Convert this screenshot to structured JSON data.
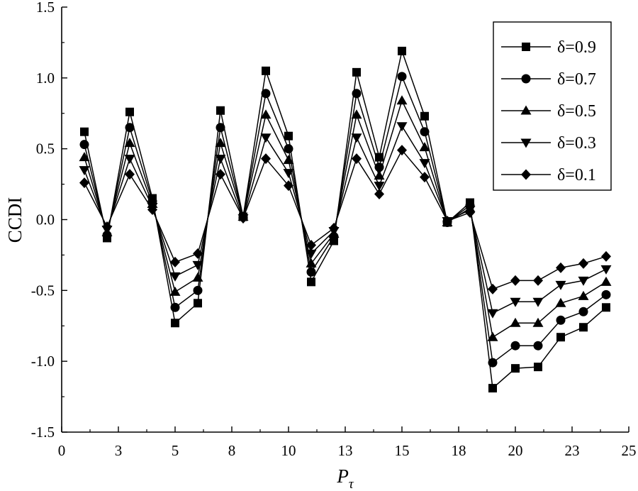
{
  "chart_data": {
    "type": "line",
    "title": "",
    "xlabel": "P",
    "xlabel_subscript": "τ",
    "ylabel": "CCDI",
    "xlim": [
      0,
      25
    ],
    "ylim": [
      -1.5,
      1.5
    ],
    "x_tick_values": [
      0,
      2.5,
      5,
      7.5,
      10,
      12.5,
      15,
      17.5,
      20,
      22.5,
      25
    ],
    "x_tick_labels": [
      "0",
      "3",
      "5",
      "8",
      "10",
      "13",
      "15",
      "18",
      "20",
      "23",
      "25"
    ],
    "y_tick_values": [
      -1.5,
      -1.0,
      -0.5,
      0.0,
      0.5,
      1.0,
      1.5
    ],
    "y_tick_labels": [
      "-1.5",
      "-1.0",
      "-0.5",
      "0.0",
      "0.5",
      "1.0",
      "1.5"
    ],
    "grid": false,
    "legend_position": "top-right",
    "line_color": "#000000",
    "x": [
      1,
      2,
      3,
      4,
      5,
      6,
      7,
      8,
      9,
      10,
      11,
      12,
      13,
      14,
      15,
      16,
      17,
      18,
      19,
      20,
      21,
      22,
      23,
      24
    ],
    "series": [
      {
        "name": "δ=0.9",
        "marker": "square",
        "values": [
          0.62,
          -0.13,
          0.76,
          0.15,
          -0.73,
          -0.59,
          0.77,
          0.02,
          1.05,
          0.59,
          -0.44,
          -0.15,
          1.04,
          0.44,
          1.19,
          0.73,
          -0.02,
          0.12,
          -1.19,
          -1.05,
          -1.04,
          -0.83,
          -0.76,
          -0.62
        ]
      },
      {
        "name": "δ=0.7",
        "marker": "circle",
        "values": [
          0.53,
          -0.11,
          0.65,
          0.13,
          -0.62,
          -0.5,
          0.65,
          0.02,
          0.89,
          0.5,
          -0.37,
          -0.12,
          0.89,
          0.37,
          1.01,
          0.62,
          -0.02,
          0.1,
          -1.01,
          -0.89,
          -0.89,
          -0.71,
          -0.65,
          -0.53
        ]
      },
      {
        "name": "δ=0.5",
        "marker": "triangle-up",
        "values": [
          0.44,
          -0.09,
          0.54,
          0.11,
          -0.51,
          -0.41,
          0.54,
          0.02,
          0.74,
          0.42,
          -0.31,
          -0.1,
          0.74,
          0.31,
          0.84,
          0.51,
          -0.02,
          0.08,
          -0.83,
          -0.73,
          -0.73,
          -0.59,
          -0.54,
          -0.44
        ]
      },
      {
        "name": "δ=0.3",
        "marker": "triangle-down",
        "values": [
          0.35,
          -0.07,
          0.43,
          0.09,
          -0.4,
          -0.32,
          0.43,
          0.01,
          0.58,
          0.33,
          -0.24,
          -0.08,
          0.58,
          0.24,
          0.66,
          0.4,
          -0.01,
          0.07,
          -0.66,
          -0.58,
          -0.58,
          -0.46,
          -0.43,
          -0.35
        ]
      },
      {
        "name": "δ=0.1",
        "marker": "diamond",
        "values": [
          0.26,
          -0.05,
          0.32,
          0.07,
          -0.3,
          -0.24,
          0.32,
          0.01,
          0.43,
          0.24,
          -0.18,
          -0.06,
          0.43,
          0.18,
          0.49,
          0.3,
          -0.01,
          0.05,
          -0.49,
          -0.43,
          -0.43,
          -0.34,
          -0.31,
          -0.26
        ]
      }
    ]
  }
}
